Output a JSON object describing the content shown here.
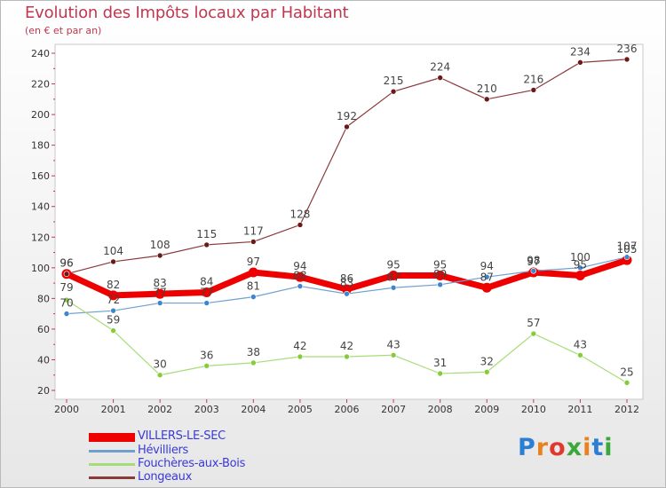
{
  "title": "Evolution des Impôts locaux par Habitant",
  "subtitle": "(en € et par an)",
  "logo": {
    "text": "Proxiti",
    "letter_colors": [
      "#2a7fd4",
      "#e8821e",
      "#e03a2f",
      "#3aa83a",
      "#e8821e",
      "#2a7fd4",
      "#3aa83a"
    ]
  },
  "chart_data": {
    "type": "line",
    "x": [
      "2000",
      "2001",
      "2002",
      "2003",
      "2004",
      "2005",
      "2006",
      "2007",
      "2008",
      "2009",
      "2010",
      "2011",
      "2012"
    ],
    "ylim": [
      20,
      240
    ],
    "yticks": [
      20,
      40,
      60,
      80,
      100,
      120,
      140,
      160,
      180,
      200,
      220,
      240
    ],
    "grid": false,
    "legend_position": "bottom-left",
    "series": [
      {
        "name": "VILLERS-LE-SEC",
        "color": "#ee0000",
        "marker": "#ee0000",
        "width": 7,
        "values": [
          96,
          82,
          83,
          84,
          97,
          94,
          86,
          95,
          95,
          87,
          97,
          95,
          105
        ],
        "labels": [
          "96",
          "82",
          "83",
          "84",
          "97",
          "94",
          "86",
          "95",
          "95",
          "87",
          "97",
          "95",
          "105"
        ]
      },
      {
        "name": "Hévilliers",
        "color": "#6ea1cf",
        "marker": "#3d86cf",
        "width": 1.2,
        "values": [
          70,
          72,
          77,
          77,
          81,
          88,
          83,
          87,
          89,
          94,
          98,
          100,
          107
        ],
        "labels": [
          "70",
          "72",
          "77",
          "77",
          "81",
          "88",
          "83",
          "87",
          "89",
          "94",
          "98",
          "100",
          "107"
        ]
      },
      {
        "name": "Fouchères-aux-Bois",
        "color": "#a8dc78",
        "marker": "#86cc3a",
        "width": 1.2,
        "values": [
          79,
          59,
          30,
          36,
          38,
          42,
          42,
          43,
          31,
          32,
          57,
          43,
          25
        ],
        "labels": [
          "79",
          "59",
          "30",
          "36",
          "38",
          "42",
          "42",
          "43",
          "31",
          "32",
          "57",
          "43",
          "25"
        ]
      },
      {
        "name": "Longeaux",
        "color": "#8b3a3a",
        "marker": "#6b1a1a",
        "width": 1.2,
        "values": [
          96,
          104,
          108,
          115,
          117,
          128,
          192,
          215,
          224,
          210,
          216,
          234,
          236
        ],
        "labels": [
          "96",
          "104",
          "108",
          "115",
          "117",
          "128",
          "192",
          "215",
          "224",
          "210",
          "216",
          "234",
          "236"
        ]
      }
    ]
  }
}
